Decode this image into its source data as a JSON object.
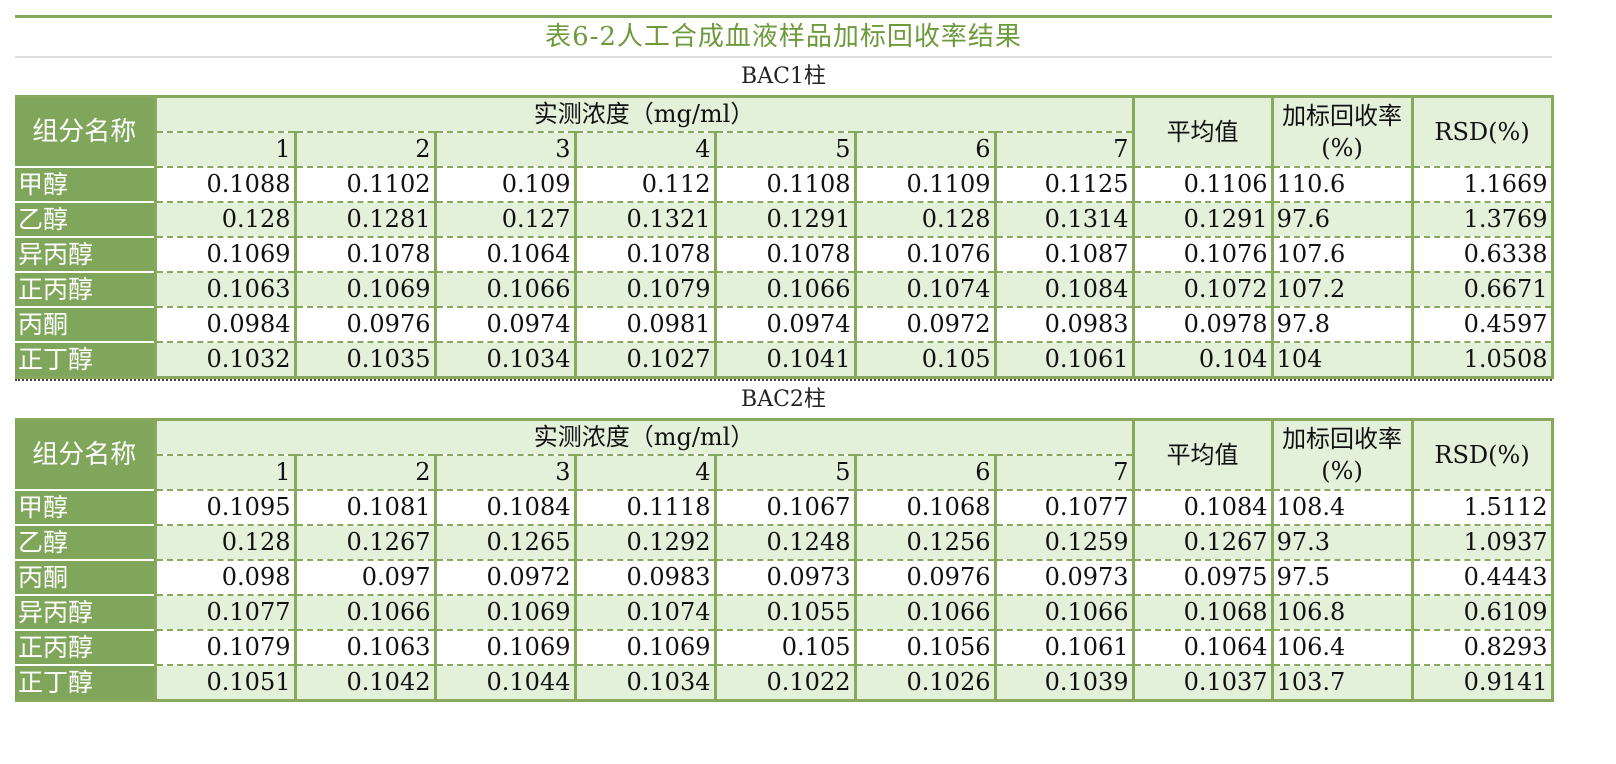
{
  "title": "表6-2人工合成血液样品加标回收率结果",
  "headers": {
    "component": "组分名称",
    "measured": "实测浓度（mg/ml）",
    "runs": [
      "1",
      "2",
      "3",
      "4",
      "5",
      "6",
      "7"
    ],
    "average": "平均值",
    "recovery": "加标回收率(%)",
    "rsd": "RSD(%)"
  },
  "colors": {
    "accent_green": "#7fa65a",
    "light_green": "#e3f0da",
    "title_green": "#6f9a3c"
  },
  "sections": [
    {
      "label": "BAC1柱",
      "rows": [
        {
          "name": "甲醇",
          "values": [
            "0.1088",
            "0.1102",
            "0.109",
            "0.112",
            "0.1108",
            "0.1109",
            "0.1125"
          ],
          "average": "0.1106",
          "recovery": "110.6",
          "rsd": "1.1669"
        },
        {
          "name": "乙醇",
          "values": [
            "0.128",
            "0.1281",
            "0.127",
            "0.1321",
            "0.1291",
            "0.128",
            "0.1314"
          ],
          "average": "0.1291",
          "recovery": "97.6",
          "rsd": "1.3769"
        },
        {
          "name": "异丙醇",
          "values": [
            "0.1069",
            "0.1078",
            "0.1064",
            "0.1078",
            "0.1078",
            "0.1076",
            "0.1087"
          ],
          "average": "0.1076",
          "recovery": "107.6",
          "rsd": "0.6338"
        },
        {
          "name": "正丙醇",
          "values": [
            "0.1063",
            "0.1069",
            "0.1066",
            "0.1079",
            "0.1066",
            "0.1074",
            "0.1084"
          ],
          "average": "0.1072",
          "recovery": "107.2",
          "rsd": "0.6671"
        },
        {
          "name": "丙酮",
          "values": [
            "0.0984",
            "0.0976",
            "0.0974",
            "0.0981",
            "0.0974",
            "0.0972",
            "0.0983"
          ],
          "average": "0.0978",
          "recovery": "97.8",
          "rsd": "0.4597"
        },
        {
          "name": "正丁醇",
          "values": [
            "0.1032",
            "0.1035",
            "0.1034",
            "0.1027",
            "0.1041",
            "0.105",
            "0.1061"
          ],
          "average": "0.104",
          "recovery": "104",
          "rsd": "1.0508"
        }
      ]
    },
    {
      "label": "BAC2柱",
      "rows": [
        {
          "name": "甲醇",
          "values": [
            "0.1095",
            "0.1081",
            "0.1084",
            "0.1118",
            "0.1067",
            "0.1068",
            "0.1077"
          ],
          "average": "0.1084",
          "recovery": "108.4",
          "rsd": "1.5112"
        },
        {
          "name": "乙醇",
          "values": [
            "0.128",
            "0.1267",
            "0.1265",
            "0.1292",
            "0.1248",
            "0.1256",
            "0.1259"
          ],
          "average": "0.1267",
          "recovery": "97.3",
          "rsd": "1.0937"
        },
        {
          "name": "丙酮",
          "values": [
            "0.098",
            "0.097",
            "0.0972",
            "0.0983",
            "0.0973",
            "0.0976",
            "0.0973"
          ],
          "average": "0.0975",
          "recovery": "97.5",
          "rsd": "0.4443"
        },
        {
          "name": "异丙醇",
          "values": [
            "0.1077",
            "0.1066",
            "0.1069",
            "0.1074",
            "0.1055",
            "0.1066",
            "0.1066"
          ],
          "average": "0.1068",
          "recovery": "106.8",
          "rsd": "0.6109"
        },
        {
          "name": "正丙醇",
          "values": [
            "0.1079",
            "0.1063",
            "0.1069",
            "0.1069",
            "0.105",
            "0.1056",
            "0.1061"
          ],
          "average": "0.1064",
          "recovery": "106.4",
          "rsd": "0.8293"
        },
        {
          "name": "正丁醇",
          "values": [
            "0.1051",
            "0.1042",
            "0.1044",
            "0.1034",
            "0.1022",
            "0.1026",
            "0.1039"
          ],
          "average": "0.1037",
          "recovery": "103.7",
          "rsd": "0.9141"
        }
      ]
    }
  ]
}
